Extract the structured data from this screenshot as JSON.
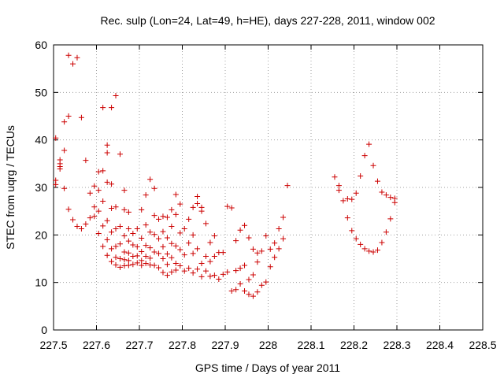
{
  "chart_data": {
    "type": "scatter",
    "title": "Rec. sulp (Lon=24, Lat=49, h=HE), days 227-228, 2011, window 002",
    "xlabel": "GPS time / Days of year 2011",
    "ylabel": "STEC from uqrg / TECUs",
    "xlim": [
      227.5,
      228.5
    ],
    "ylim": [
      0,
      60
    ],
    "xticks": [
      "227.5",
      "227.6",
      "227.7",
      "227.8",
      "227.9",
      "228",
      "228.1",
      "228.2",
      "228.3",
      "228.4",
      "228.5"
    ],
    "yticks": [
      "0",
      "10",
      "20",
      "30",
      "40",
      "50",
      "60"
    ],
    "grid": true,
    "legend": "none",
    "marker": "+",
    "color": "#cc0000",
    "series": [
      {
        "points": [
          [
            227.505,
            40.4
          ],
          [
            227.505,
            31.5
          ],
          [
            227.505,
            30.6
          ],
          [
            227.515,
            35.8
          ],
          [
            227.515,
            35.0
          ],
          [
            227.515,
            34.4
          ],
          [
            227.515,
            33.9
          ],
          [
            227.525,
            43.8
          ],
          [
            227.525,
            37.8
          ],
          [
            227.525,
            29.8
          ],
          [
            227.535,
            57.8
          ],
          [
            227.535,
            45.0
          ],
          [
            227.535,
            25.4
          ],
          [
            227.545,
            56.0
          ],
          [
            227.545,
            23.2
          ],
          [
            227.555,
            57.3
          ],
          [
            227.555,
            21.8
          ],
          [
            227.565,
            44.7
          ],
          [
            227.565,
            21.3
          ],
          [
            227.575,
            35.7
          ],
          [
            227.575,
            22.3
          ],
          [
            227.585,
            28.8
          ],
          [
            227.585,
            23.6
          ],
          [
            227.595,
            30.3
          ],
          [
            227.595,
            25.9
          ],
          [
            227.595,
            23.9
          ],
          [
            227.605,
            33.3
          ],
          [
            227.605,
            29.4
          ],
          [
            227.605,
            25.0
          ],
          [
            227.605,
            20.3
          ],
          [
            227.615,
            46.8
          ],
          [
            227.615,
            33.5
          ],
          [
            227.615,
            27.1
          ],
          [
            227.615,
            21.9
          ],
          [
            227.615,
            17.6
          ],
          [
            227.625,
            38.9
          ],
          [
            227.625,
            37.3
          ],
          [
            227.625,
            31.1
          ],
          [
            227.625,
            23.0
          ],
          [
            227.625,
            19.0
          ],
          [
            227.625,
            15.7
          ],
          [
            227.635,
            46.8
          ],
          [
            227.635,
            30.7
          ],
          [
            227.635,
            25.6
          ],
          [
            227.635,
            20.6
          ],
          [
            227.635,
            17.1
          ],
          [
            227.635,
            14.4
          ],
          [
            227.645,
            49.3
          ],
          [
            227.645,
            25.9
          ],
          [
            227.645,
            21.3
          ],
          [
            227.645,
            17.6
          ],
          [
            227.645,
            15.3
          ],
          [
            227.645,
            13.7
          ],
          [
            227.655,
            37.0
          ],
          [
            227.655,
            21.8
          ],
          [
            227.655,
            18.1
          ],
          [
            227.655,
            15.0
          ],
          [
            227.655,
            13.2
          ],
          [
            227.665,
            29.4
          ],
          [
            227.665,
            25.3
          ],
          [
            227.665,
            19.8
          ],
          [
            227.665,
            16.4
          ],
          [
            227.665,
            14.8
          ],
          [
            227.665,
            13.5
          ],
          [
            227.675,
            24.8
          ],
          [
            227.675,
            21.3
          ],
          [
            227.675,
            18.7
          ],
          [
            227.675,
            16.2
          ],
          [
            227.675,
            14.6
          ],
          [
            227.675,
            13.6
          ],
          [
            227.685,
            20.3
          ],
          [
            227.685,
            17.9
          ],
          [
            227.685,
            15.5
          ],
          [
            227.685,
            13.8
          ],
          [
            227.695,
            21.3
          ],
          [
            227.695,
            17.5
          ],
          [
            227.695,
            15.6
          ],
          [
            227.695,
            14.1
          ],
          [
            227.705,
            25.3
          ],
          [
            227.705,
            19.3
          ],
          [
            227.705,
            16.5
          ],
          [
            227.705,
            14.6
          ],
          [
            227.705,
            13.6
          ],
          [
            227.715,
            28.4
          ],
          [
            227.715,
            22.1
          ],
          [
            227.715,
            17.8
          ],
          [
            227.715,
            15.5
          ],
          [
            227.715,
            14.0
          ],
          [
            227.725,
            31.7
          ],
          [
            227.725,
            20.6
          ],
          [
            227.725,
            17.3
          ],
          [
            227.725,
            15.1
          ],
          [
            227.725,
            13.7
          ],
          [
            227.735,
            29.8
          ],
          [
            227.735,
            24.1
          ],
          [
            227.735,
            20.1
          ],
          [
            227.735,
            16.4
          ],
          [
            227.735,
            13.6
          ],
          [
            227.745,
            23.3
          ],
          [
            227.745,
            19.2
          ],
          [
            227.745,
            16.1
          ],
          [
            227.745,
            13.1
          ],
          [
            227.755,
            23.9
          ],
          [
            227.755,
            20.7
          ],
          [
            227.755,
            17.5
          ],
          [
            227.755,
            15.0
          ],
          [
            227.755,
            12.1
          ],
          [
            227.765,
            23.7
          ],
          [
            227.765,
            19.4
          ],
          [
            227.765,
            16.0
          ],
          [
            227.765,
            13.8
          ],
          [
            227.765,
            11.5
          ],
          [
            227.775,
            25.3
          ],
          [
            227.775,
            21.8
          ],
          [
            227.775,
            18.2
          ],
          [
            227.775,
            15.2
          ],
          [
            227.775,
            12.2
          ],
          [
            227.785,
            28.5
          ],
          [
            227.785,
            24.3
          ],
          [
            227.785,
            17.7
          ],
          [
            227.785,
            14.0
          ],
          [
            227.785,
            12.6
          ],
          [
            227.795,
            26.5
          ],
          [
            227.795,
            20.4
          ],
          [
            227.795,
            16.9
          ],
          [
            227.795,
            13.5
          ],
          [
            227.805,
            21.3
          ],
          [
            227.805,
            15.8
          ],
          [
            227.805,
            12.4
          ],
          [
            227.815,
            23.3
          ],
          [
            227.815,
            18.3
          ],
          [
            227.815,
            13.0
          ],
          [
            227.825,
            25.8
          ],
          [
            227.825,
            20.0
          ],
          [
            227.825,
            16.1
          ],
          [
            227.825,
            12.0
          ],
          [
            227.835,
            28.1
          ],
          [
            227.835,
            26.6
          ],
          [
            227.835,
            17.1
          ],
          [
            227.835,
            12.8
          ],
          [
            227.845,
            25.8
          ],
          [
            227.845,
            25.0
          ],
          [
            227.845,
            14.0
          ],
          [
            227.845,
            11.2
          ],
          [
            227.855,
            22.4
          ],
          [
            227.855,
            15.5
          ],
          [
            227.855,
            12.4
          ],
          [
            227.865,
            18.4
          ],
          [
            227.865,
            14.4
          ],
          [
            227.865,
            11.3
          ],
          [
            227.875,
            19.8
          ],
          [
            227.875,
            15.5
          ],
          [
            227.875,
            11.5
          ],
          [
            227.885,
            16.3
          ],
          [
            227.885,
            10.7
          ],
          [
            227.895,
            16.3
          ],
          [
            227.895,
            11.7
          ],
          [
            227.905,
            26.0
          ],
          [
            227.905,
            12.2
          ],
          [
            227.915,
            25.7
          ],
          [
            227.915,
            8.2
          ],
          [
            227.925,
            18.8
          ],
          [
            227.925,
            12.5
          ],
          [
            227.925,
            8.5
          ],
          [
            227.935,
            21.0
          ],
          [
            227.935,
            13.0
          ],
          [
            227.935,
            9.7
          ],
          [
            227.945,
            22.0
          ],
          [
            227.945,
            13.6
          ],
          [
            227.945,
            8.2
          ],
          [
            227.955,
            19.4
          ],
          [
            227.955,
            10.6
          ],
          [
            227.955,
            7.5
          ],
          [
            227.965,
            17.0
          ],
          [
            227.965,
            11.6
          ],
          [
            227.965,
            7.1
          ],
          [
            227.975,
            16.2
          ],
          [
            227.975,
            14.3
          ],
          [
            227.975,
            8.0
          ],
          [
            227.985,
            16.6
          ],
          [
            227.985,
            9.4
          ],
          [
            227.995,
            19.8
          ],
          [
            227.995,
            10.1
          ],
          [
            228.005,
            17.0
          ],
          [
            228.005,
            13.3
          ],
          [
            228.015,
            18.3
          ],
          [
            228.015,
            15.3
          ],
          [
            228.025,
            21.3
          ],
          [
            228.025,
            17.1
          ],
          [
            228.035,
            23.7
          ],
          [
            228.035,
            19.2
          ],
          [
            228.045,
            30.4
          ],
          [
            228.155,
            32.2
          ],
          [
            228.165,
            30.4
          ],
          [
            228.165,
            29.4
          ],
          [
            228.175,
            27.2
          ],
          [
            228.185,
            23.6
          ],
          [
            228.185,
            27.6
          ],
          [
            228.195,
            20.9
          ],
          [
            228.195,
            27.5
          ],
          [
            228.205,
            19.2
          ],
          [
            228.205,
            28.8
          ],
          [
            228.215,
            18.0
          ],
          [
            228.215,
            32.4
          ],
          [
            228.225,
            17.1
          ],
          [
            228.225,
            36.7
          ],
          [
            228.235,
            16.6
          ],
          [
            228.235,
            39.1
          ],
          [
            228.245,
            16.4
          ],
          [
            228.245,
            34.6
          ],
          [
            228.255,
            16.8
          ],
          [
            228.255,
            31.3
          ],
          [
            228.265,
            18.4
          ],
          [
            228.265,
            29.0
          ],
          [
            228.275,
            20.6
          ],
          [
            228.275,
            28.4
          ],
          [
            228.285,
            23.4
          ],
          [
            228.285,
            27.9
          ],
          [
            228.295,
            27.7
          ],
          [
            228.295,
            26.8
          ]
        ]
      }
    ]
  }
}
